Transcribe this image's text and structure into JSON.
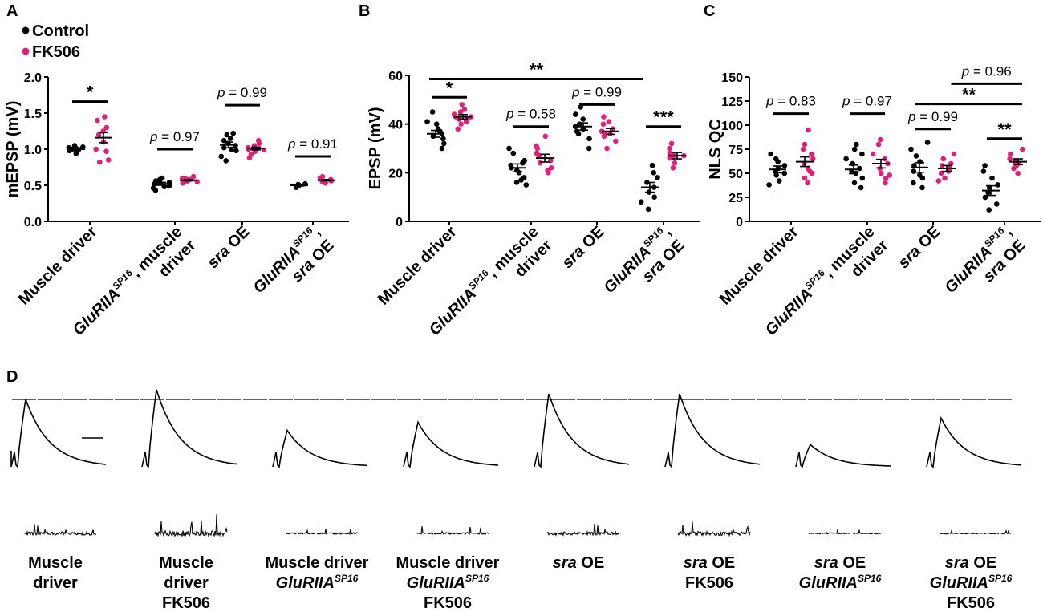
{
  "legend": {
    "control_label": "Control",
    "fk506_label": "FK506"
  },
  "colors": {
    "control": "#000000",
    "fk506": "#e0217a"
  },
  "panels": {
    "A": {
      "letter": "A"
    },
    "B": {
      "letter": "B"
    },
    "C": {
      "letter": "C"
    },
    "D": {
      "letter": "D"
    }
  },
  "chart_data": [
    {
      "panel": "A",
      "type": "scatter",
      "ylabel": "mEPSP (mV)",
      "ylim": [
        0,
        2.0
      ],
      "yticks": [
        "0.0",
        "0.5",
        "1.0",
        "1.5",
        "2.0"
      ],
      "categories": [
        [
          "Muscle driver"
        ],
        [
          "GluRIIA",
          "SP16",
          ", muscle",
          "driver"
        ],
        [
          "sra",
          " OE"
        ],
        [
          "GluRIIA",
          "SP16",
          ",",
          "sra",
          " OE"
        ]
      ],
      "series": [
        {
          "name": "Control",
          "values": [
            [
              0.94,
              0.97,
              0.98,
              1.0,
              1.0,
              1.01,
              1.02,
              1.03,
              0.99,
              1.05
            ],
            [
              0.43,
              0.46,
              0.49,
              0.5,
              0.52,
              0.53,
              0.54,
              0.56,
              0.58,
              0.6,
              0.48,
              0.55
            ],
            [
              0.84,
              0.9,
              0.98,
              1.02,
              1.05,
              1.08,
              1.12,
              1.15,
              1.2,
              1.22,
              1.0
            ],
            [
              0.47,
              0.49,
              0.5,
              0.51,
              0.52,
              0.5
            ]
          ]
        },
        {
          "name": "FK506",
          "values": [
            [
              0.82,
              0.85,
              0.97,
              1.0,
              1.1,
              1.2,
              1.3,
              1.4,
              1.45,
              1.25
            ],
            [
              0.53,
              0.55,
              0.56,
              0.57,
              0.58,
              0.59,
              0.6,
              0.62,
              0.56
            ],
            [
              0.88,
              0.93,
              0.97,
              1.0,
              1.02,
              1.05,
              1.08,
              1.12,
              0.99
            ],
            [
              0.53,
              0.55,
              0.57,
              0.58,
              0.6,
              0.62,
              0.56
            ]
          ]
        }
      ],
      "means": [
        [
          1.0,
          1.16
        ],
        [
          0.52,
          0.57
        ],
        [
          1.06,
          1.01
        ],
        [
          0.5,
          0.57
        ]
      ],
      "sems": [
        [
          0.02,
          0.07
        ],
        [
          0.02,
          0.01
        ],
        [
          0.04,
          0.02
        ],
        [
          0.01,
          0.01
        ]
      ],
      "annotations": [
        {
          "text": "*",
          "group": 0,
          "y": 1.66
        },
        {
          "text": "p = 0.97",
          "group": 1,
          "y": 1.0
        },
        {
          "text": "p = 0.99",
          "group": 2,
          "y": 1.61
        },
        {
          "text": "p = 0.91",
          "group": 3,
          "y": 0.9
        }
      ]
    },
    {
      "panel": "B",
      "type": "scatter",
      "ylabel": "EPSP (mV)",
      "ylim": [
        0,
        60
      ],
      "yticks": [
        "0",
        "20",
        "40",
        "60"
      ],
      "categories": [
        [
          "Muscle driver"
        ],
        [
          "GluRIIA",
          "SP16",
          ", muscle",
          "driver"
        ],
        [
          "sra",
          " OE"
        ],
        [
          "GluRIIA",
          "SP16",
          ",",
          "sra",
          " OE"
        ]
      ],
      "series": [
        {
          "name": "Control",
          "values": [
            [
              30,
              32,
              34,
              36,
              37,
              38,
              40,
              41,
              45,
              35
            ],
            [
              15,
              16,
              18,
              20,
              21,
              23,
              24,
              25,
              28,
              30,
              22,
              17
            ],
            [
              30,
              34,
              37,
              38,
              39,
              40,
              42,
              44,
              47,
              36
            ],
            [
              5,
              8,
              10,
              12,
              14,
              16,
              18,
              20,
              23
            ]
          ]
        },
        {
          "name": "FK506",
          "values": [
            [
              38,
              40,
              41,
              42,
              42,
              43,
              44,
              45,
              46,
              48,
              43
            ],
            [
              20,
              21,
              22,
              24,
              25,
              27,
              28,
              30,
              31,
              35
            ],
            [
              30,
              33,
              35,
              36,
              37,
              38,
              40,
              41,
              43,
              36
            ],
            [
              22,
              24,
              26,
              27,
              28,
              30,
              32,
              27
            ]
          ]
        }
      ],
      "means": [
        [
          36,
          43
        ],
        [
          22,
          26
        ],
        [
          39,
          37
        ],
        [
          14,
          27
        ]
      ],
      "sems": [
        [
          1.4,
          0.9
        ],
        [
          1.6,
          1.6
        ],
        [
          1.5,
          1.2
        ],
        [
          2.0,
          1.3
        ]
      ],
      "annotations": [
        {
          "text": "*",
          "group": 0,
          "y": 51
        },
        {
          "text": "p = 0.58",
          "group": 1,
          "y": 39
        },
        {
          "text": "p = 0.99",
          "group": 2,
          "y": 48
        },
        {
          "text": "***",
          "group": 3,
          "y": 39
        },
        {
          "text": "**",
          "from": 0,
          "to": 3,
          "y": 58.5
        }
      ]
    },
    {
      "panel": "C",
      "type": "scatter",
      "ylabel": "NLS QC",
      "ylim": [
        0,
        150
      ],
      "yticks": [
        "0",
        "25",
        "50",
        "75",
        "100",
        "125",
        "150"
      ],
      "categories": [
        [
          "Muscle driver"
        ],
        [
          "GluRIIA",
          "SP16",
          ", muscle",
          "driver"
        ],
        [
          "sra",
          " OE"
        ],
        [
          "GluRIIA",
          "SP16",
          ",",
          "sra",
          " OE"
        ]
      ],
      "series": [
        {
          "name": "Control",
          "values": [
            [
              38,
              42,
              48,
              52,
              55,
              58,
              62,
              65,
              70,
              50
            ],
            [
              35,
              40,
              45,
              50,
              55,
              60,
              65,
              70,
              75,
              80,
              52
            ],
            [
              35,
              40,
              45,
              52,
              58,
              62,
              68,
              75,
              82,
              48
            ],
            [
              12,
              18,
              25,
              30,
              35,
              38,
              45,
              52,
              58
            ]
          ]
        },
        {
          "name": "FK506",
          "values": [
            [
              40,
              45,
              50,
              55,
              60,
              65,
              70,
              75,
              80,
              95,
              52
            ],
            [
              40,
              45,
              50,
              55,
              60,
              65,
              70,
              80,
              85,
              48
            ],
            [
              42,
              45,
              50,
              55,
              58,
              60,
              65,
              70,
              52
            ],
            [
              50,
              55,
              58,
              60,
              62,
              65,
              70,
              75
            ]
          ]
        }
      ],
      "means": [
        [
          54,
          62
        ],
        [
          54,
          60
        ],
        [
          56,
          55
        ],
        [
          32,
          62
        ]
      ],
      "sems": [
        [
          3.5,
          5
        ],
        [
          4.5,
          4.5
        ],
        [
          5,
          3
        ],
        [
          5,
          3
        ]
      ],
      "annotations": [
        {
          "text": "p = 0.83",
          "group": 0,
          "y": 112
        },
        {
          "text": "p = 0.97",
          "group": 1,
          "y": 112
        },
        {
          "text": "p = 0.99",
          "group": 2,
          "y": 96
        },
        {
          "text": "**",
          "group": 3,
          "y": 86
        },
        {
          "text": "**",
          "from": 0,
          "to": 1,
          "pair": [
            2,
            3
          ],
          "y": 122
        },
        {
          "text": "p = 0.96",
          "from": 1,
          "to": 1,
          "pair": [
            2.5,
            3.8
          ],
          "y": 143
        }
      ]
    }
  ],
  "traces": [
    {
      "amp": 1.0,
      "noise": 0.9,
      "label_lines": [
        [
          "Muscle"
        ],
        [
          "driver"
        ]
      ]
    },
    {
      "amp": 1.14,
      "noise": 1.4,
      "label_lines": [
        [
          "Muscle"
        ],
        [
          "driver"
        ],
        [
          "FK506"
        ]
      ]
    },
    {
      "amp": 0.54,
      "noise": 0.4,
      "label_lines": [
        [
          "Muscle driver"
        ],
        [
          "GluRIIA",
          "SP16"
        ]
      ]
    },
    {
      "amp": 0.66,
      "noise": 0.45,
      "label_lines": [
        [
          "Muscle driver"
        ],
        [
          "GluRIIA",
          "SP16"
        ],
        [
          "FK506"
        ]
      ]
    },
    {
      "amp": 1.08,
      "noise": 0.9,
      "label_lines": [
        [
          "sra",
          " OE"
        ]
      ]
    },
    {
      "amp": 1.08,
      "noise": 1.0,
      "label_lines": [
        [
          "sra",
          " OE"
        ],
        [
          "FK506"
        ]
      ]
    },
    {
      "amp": 0.33,
      "noise": 0.35,
      "label_lines": [
        [
          "sra",
          " OE"
        ],
        [
          "GluRIIA",
          "SP16"
        ]
      ]
    },
    {
      "amp": 0.72,
      "noise": 0.3,
      "label_lines": [
        [
          "sra",
          " OE"
        ],
        [
          "GluRIIA",
          "SP16"
        ],
        [
          "FK506"
        ]
      ]
    }
  ]
}
